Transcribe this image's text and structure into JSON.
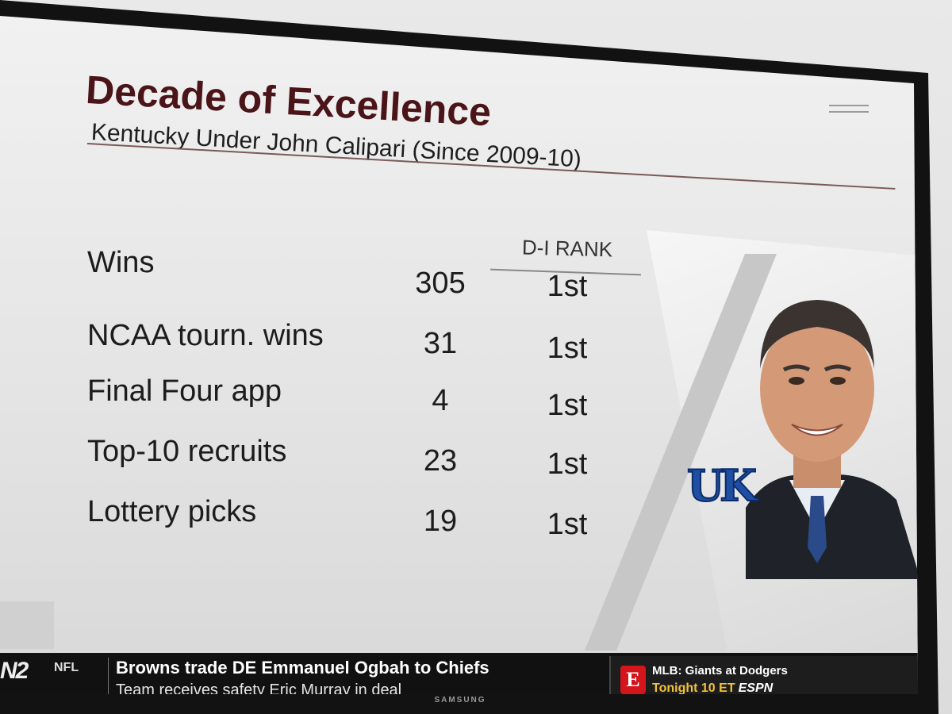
{
  "graphic": {
    "title": "Decade of Excellence",
    "subtitle": "Kentucky Under John Calipari (Since 2009-10)",
    "rank_header": "D-I RANK",
    "stats": [
      {
        "label": "Wins",
        "value": "305",
        "rank": "1st"
      },
      {
        "label": "NCAA tourn. wins",
        "value": "31",
        "rank": "1st"
      },
      {
        "label": "Final Four app",
        "value": "4",
        "rank": "1st"
      },
      {
        "label": "Top-10 recruits",
        "value": "23",
        "rank": "1st"
      },
      {
        "label": "Lottery picks",
        "value": "19",
        "rank": "1st"
      }
    ],
    "logo_text": "UK"
  },
  "ticker": {
    "network": "N2",
    "league": "NFL",
    "headline": "Browns trade DE Emmanuel Ogbah to Chiefs",
    "subline": "Team receives safety Eric Murray in deal",
    "promo": {
      "badge": "E",
      "title": "MLB: Giants at Dodgers",
      "time": "Tonight 10 ET",
      "network": "ESPN"
    }
  },
  "tv": {
    "brand": "SAMSUNG"
  },
  "colors": {
    "title": "#4a1418",
    "uk_blue": "#1f4fa3",
    "espn_red": "#d4161c",
    "promo_time": "#f2c23a"
  }
}
